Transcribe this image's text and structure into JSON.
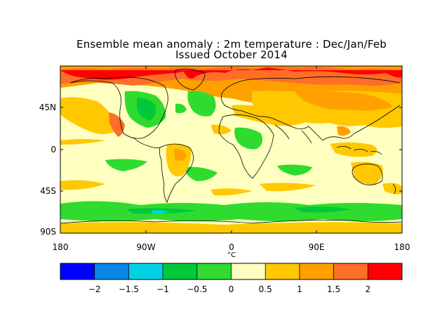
{
  "title_line1": "Ensemble mean anomaly : 2m temperature : Dec/Jan/Feb",
  "title_line2": "Issued October 2014",
  "units": "°C",
  "lat_ticks": [
    "45N",
    "0",
    "45S",
    "90S"
  ],
  "lon_ticks": [
    "180",
    "90W",
    "0",
    "90E",
    "180"
  ],
  "colorbar": {
    "colors": [
      "#0000ff",
      "#0a86e6",
      "#00d2e6",
      "#00c838",
      "#2edb2e",
      "#ffffbf",
      "#ffc800",
      "#ffa000",
      "#ff6e28",
      "#ff0000"
    ],
    "labels": [
      "−2",
      "−1.5",
      "−1",
      "−0.5",
      "0",
      "0.5",
      "1",
      "1.5",
      "2"
    ]
  }
}
